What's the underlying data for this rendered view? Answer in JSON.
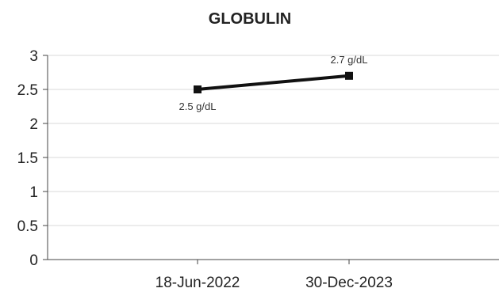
{
  "chart_data": {
    "type": "line",
    "title": "GLOBULIN",
    "categories": [
      "18-Jun-2022",
      "30-Dec-2023"
    ],
    "series": [
      {
        "values": [
          2.5,
          2.7
        ],
        "data_labels": [
          "2.5 g/dL",
          "2.7 g/dL"
        ]
      }
    ],
    "y_ticks": [
      "0",
      "0.5",
      "1",
      "1.5",
      "2",
      "2.5",
      "3"
    ],
    "ylim": [
      0,
      3
    ],
    "xlabel": "",
    "ylabel": "",
    "grid": true,
    "legend": "none",
    "colors": {
      "line": "#111111",
      "grid": "#d9d9d9",
      "axis": "#444444"
    }
  }
}
